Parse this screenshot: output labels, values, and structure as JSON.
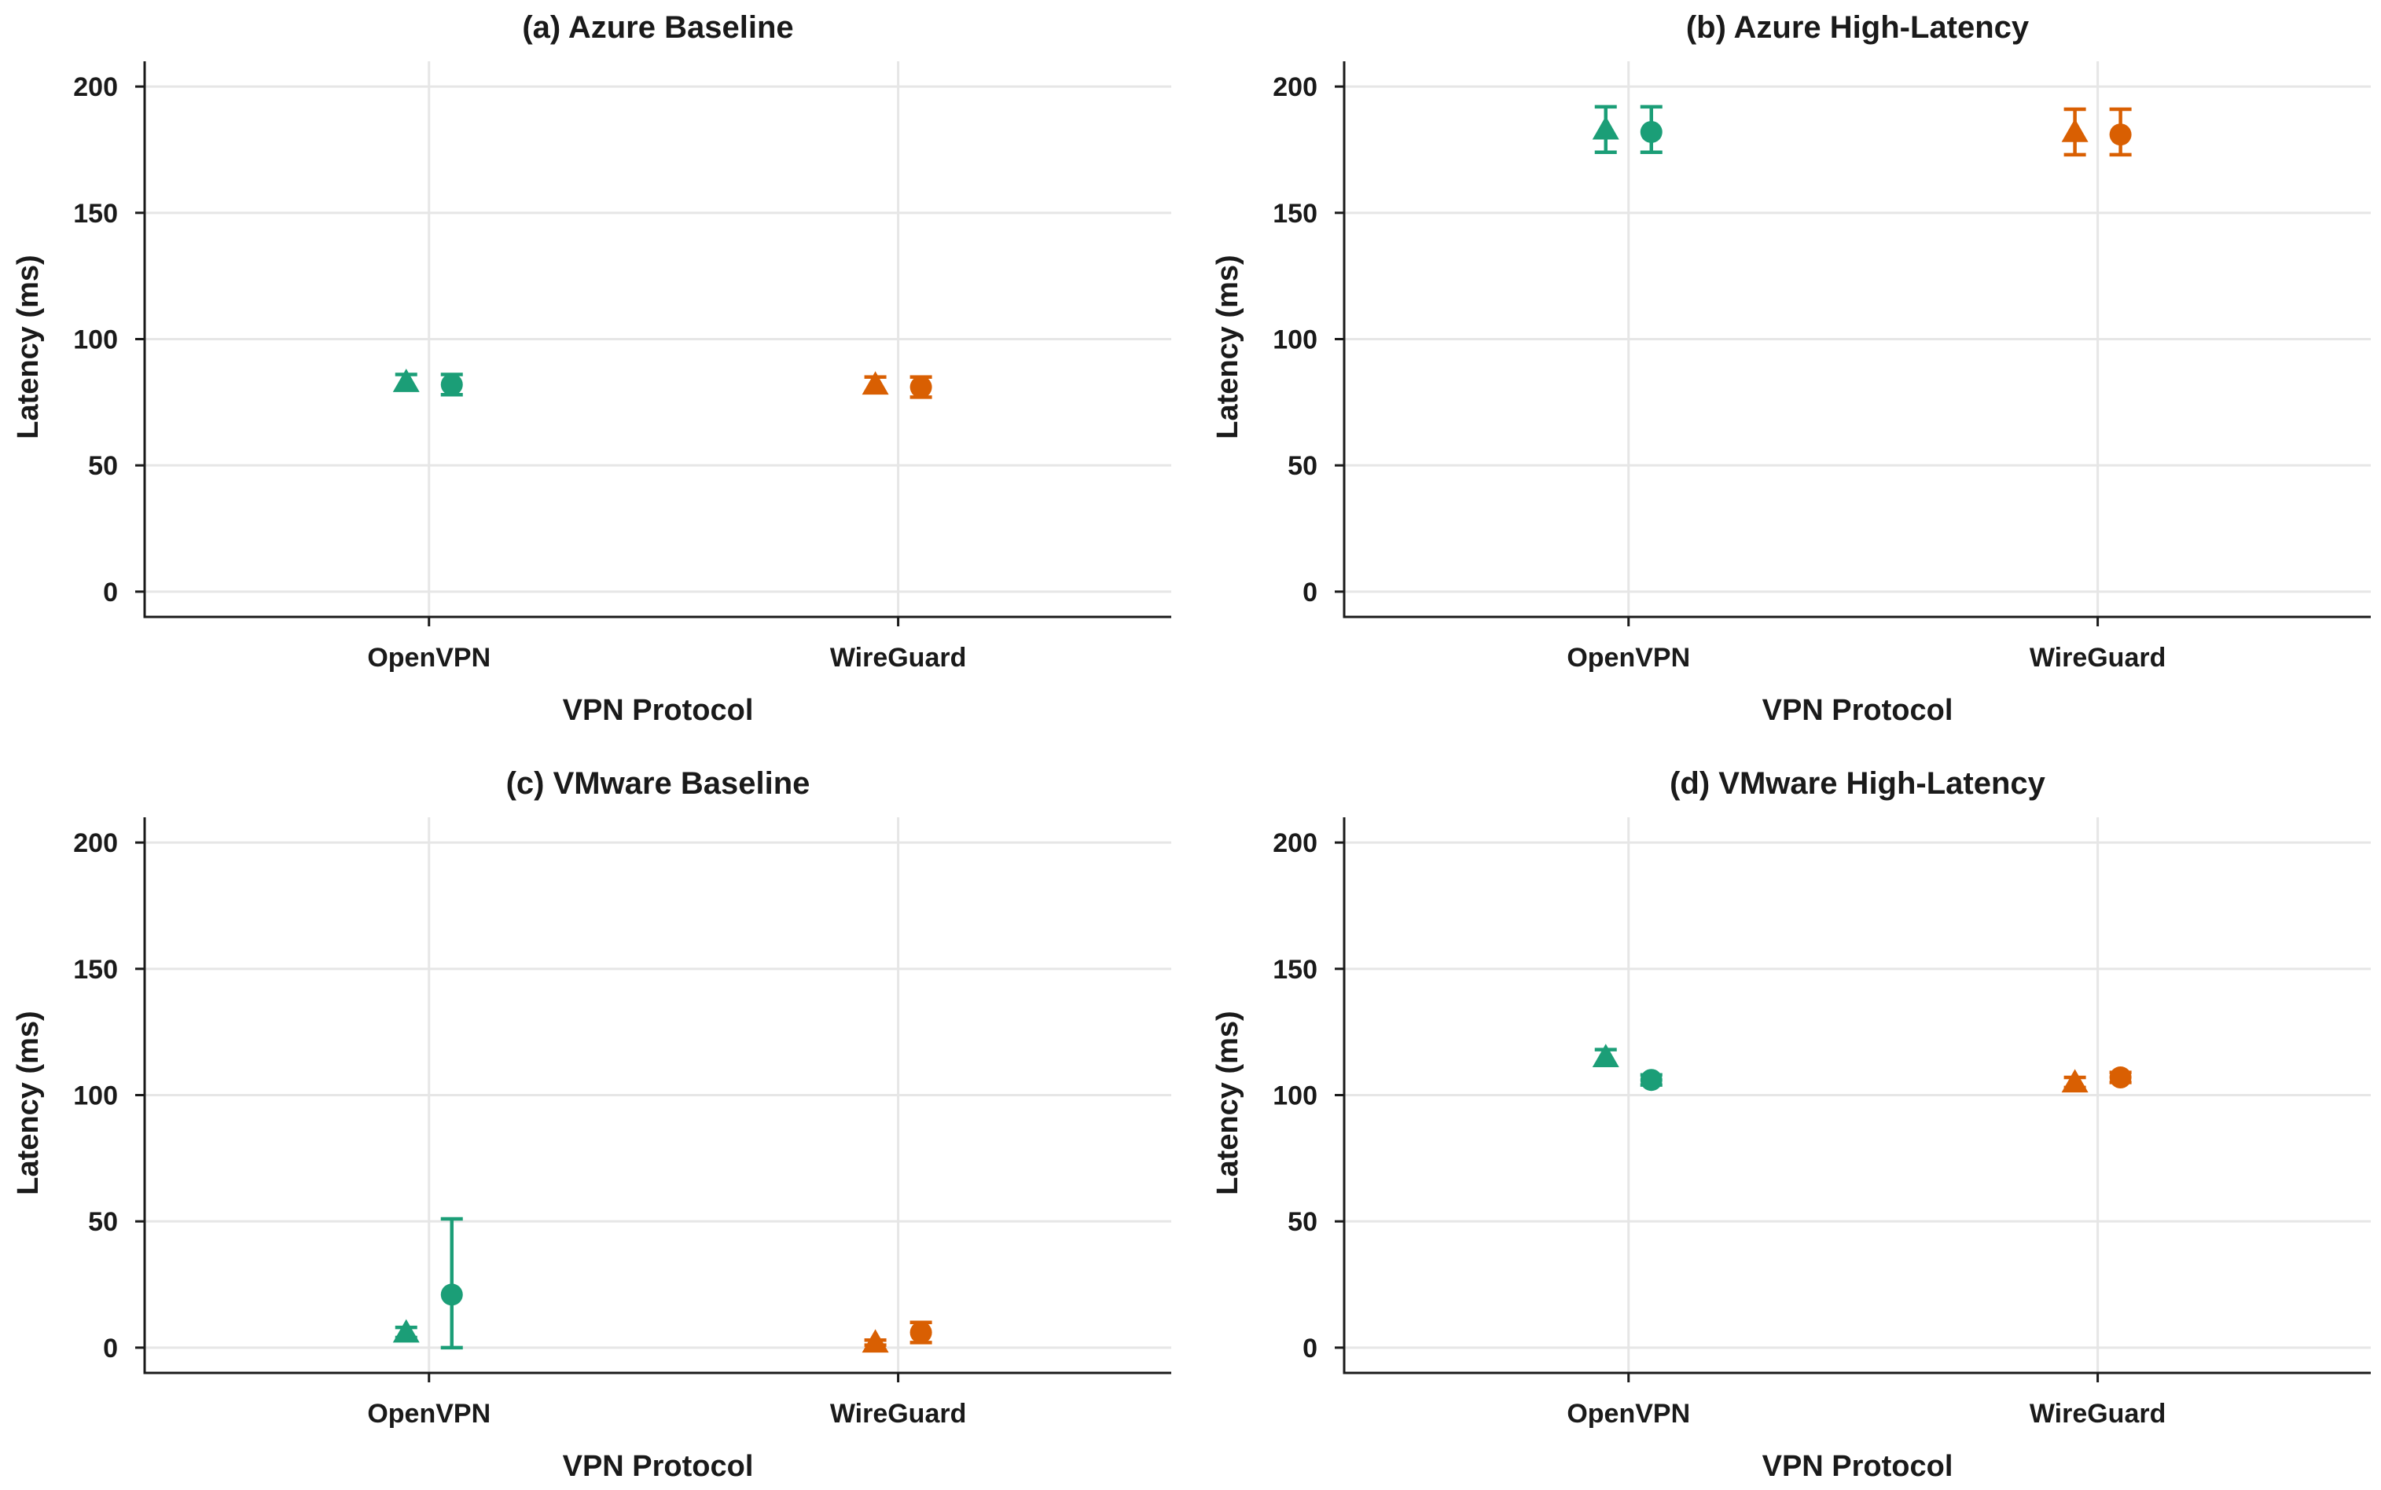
{
  "chart_data": [
    {
      "type": "scatter",
      "title": "(a) Azure Baseline",
      "xlabel": "VPN Protocol",
      "ylabel": "Latency (ms)",
      "categories": [
        "OpenVPN",
        "WireGuard"
      ],
      "ylim": [
        -10,
        210
      ],
      "yticks": [
        0,
        50,
        100,
        150,
        200
      ],
      "ytick_labels": [
        "0",
        "50",
        "100",
        "150",
        "200"
      ],
      "grid": true,
      "points": [
        {
          "category": "OpenVPN",
          "marker": "triangle",
          "value": 83,
          "err_low": 80,
          "err_high": 86
        },
        {
          "category": "OpenVPN",
          "marker": "circle",
          "value": 82,
          "err_low": 78,
          "err_high": 86
        },
        {
          "category": "WireGuard",
          "marker": "triangle",
          "value": 82,
          "err_low": 79,
          "err_high": 85
        },
        {
          "category": "WireGuard",
          "marker": "circle",
          "value": 81,
          "err_low": 77,
          "err_high": 85
        }
      ]
    },
    {
      "type": "scatter",
      "title": "(b) Azure High-Latency",
      "xlabel": "VPN Protocol",
      "ylabel": "Latency (ms)",
      "categories": [
        "OpenVPN",
        "WireGuard"
      ],
      "ylim": [
        -10,
        210
      ],
      "yticks": [
        0,
        50,
        100,
        150,
        200
      ],
      "ytick_labels": [
        "0",
        "50",
        "100",
        "150",
        "200"
      ],
      "grid": true,
      "points": [
        {
          "category": "OpenVPN",
          "marker": "triangle",
          "value": 183,
          "err_low": 174,
          "err_high": 192
        },
        {
          "category": "OpenVPN",
          "marker": "circle",
          "value": 182,
          "err_low": 174,
          "err_high": 192
        },
        {
          "category": "WireGuard",
          "marker": "triangle",
          "value": 182,
          "err_low": 173,
          "err_high": 191
        },
        {
          "category": "WireGuard",
          "marker": "circle",
          "value": 181,
          "err_low": 173,
          "err_high": 191
        }
      ]
    },
    {
      "type": "scatter",
      "title": "(c) VMware Baseline",
      "xlabel": "VPN Protocol",
      "ylabel": "Latency (ms)",
      "categories": [
        "OpenVPN",
        "WireGuard"
      ],
      "ylim": [
        -10,
        210
      ],
      "yticks": [
        0,
        50,
        100,
        150,
        200
      ],
      "ytick_labels": [
        "0",
        "50",
        "100",
        "150",
        "200"
      ],
      "grid": true,
      "points": [
        {
          "category": "OpenVPN",
          "marker": "triangle",
          "value": 6,
          "err_low": 4,
          "err_high": 8
        },
        {
          "category": "OpenVPN",
          "marker": "circle",
          "value": 21,
          "err_low": 0,
          "err_high": 51
        },
        {
          "category": "WireGuard",
          "marker": "triangle",
          "value": 2,
          "err_low": 1,
          "err_high": 3
        },
        {
          "category": "WireGuard",
          "marker": "circle",
          "value": 6,
          "err_low": 2,
          "err_high": 10
        }
      ]
    },
    {
      "type": "scatter",
      "title": "(d) VMware High-Latency",
      "xlabel": "VPN Protocol",
      "ylabel": "Latency (ms)",
      "categories": [
        "OpenVPN",
        "WireGuard"
      ],
      "ylim": [
        -10,
        210
      ],
      "yticks": [
        0,
        50,
        100,
        150,
        200
      ],
      "ytick_labels": [
        "0",
        "50",
        "100",
        "150",
        "200"
      ],
      "grid": true,
      "points": [
        {
          "category": "OpenVPN",
          "marker": "triangle",
          "value": 115,
          "err_low": 112,
          "err_high": 118
        },
        {
          "category": "OpenVPN",
          "marker": "circle",
          "value": 106,
          "err_low": 104,
          "err_high": 108
        },
        {
          "category": "WireGuard",
          "marker": "triangle",
          "value": 105,
          "err_low": 103,
          "err_high": 107
        },
        {
          "category": "WireGuard",
          "marker": "circle",
          "value": 107,
          "err_low": 105,
          "err_high": 109
        }
      ]
    }
  ],
  "colors": {
    "OpenVPN": "#1b9e77",
    "WireGuard": "#d95f02",
    "grid": "#e6e6e6",
    "axis": "#1a1a1a"
  }
}
